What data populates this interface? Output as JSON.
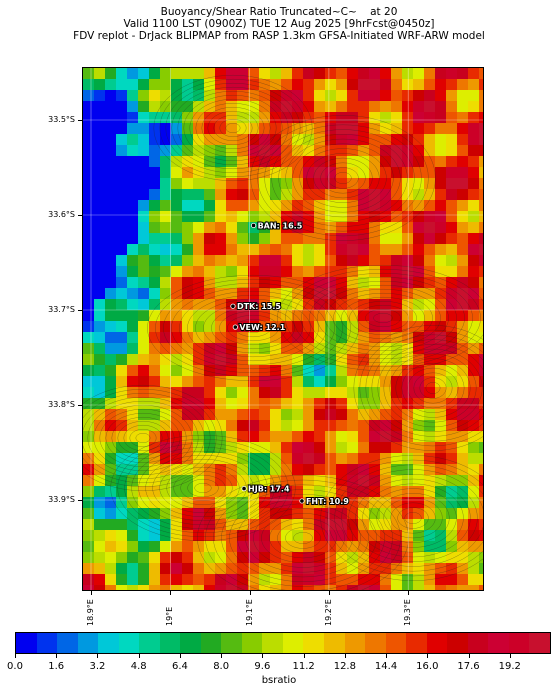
{
  "titles": {
    "line1": "Buoyancy/Shear Ratio Truncated~C~    at 20",
    "line2": "Valid 1100 LST (0900Z) TUE 12 Aug 2025 [9hrFcst@0450z]",
    "line3": "FDV replot - DrJack BLIPMAP from RASP 1.3km GFSA-Initiated WRF-ARW model"
  },
  "map": {
    "lat_labels": [
      "33.5°S",
      "33.6°S",
      "33.7°S",
      "33.8°S",
      "33.9°S"
    ],
    "lon_labels": [
      "18.9°E",
      "19°E",
      "19.1°E",
      "19.2°E",
      "19.3°E"
    ],
    "stations": [
      {
        "label": "BAN: 16.5",
        "lon": 19.105,
        "lat": -33.611
      },
      {
        "label": "DTK: 15.5",
        "lon": 19.079,
        "lat": -33.696
      },
      {
        "label": "VEW: 12.1",
        "lon": 19.082,
        "lat": -33.718
      },
      {
        "label": "HJB: 17.4",
        "lon": 19.093,
        "lat": -33.888
      },
      {
        "label": "FHT: 10.9",
        "lon": 19.166,
        "lat": -33.901
      }
    ]
  },
  "colorbar": {
    "title": "bsratio",
    "tick_labels": [
      "0.0",
      "1.6",
      "3.2",
      "4.8",
      "6.4",
      "8.0",
      "9.6",
      "11.2",
      "12.8",
      "14.4",
      "16.0",
      "17.6",
      "19.2"
    ],
    "min": 0,
    "max": 20.8,
    "colors": [
      "#0000f0",
      "#0033ee",
      "#0066e6",
      "#0099e0",
      "#00c8d8",
      "#00d8c0",
      "#00cc90",
      "#00bb66",
      "#00aa44",
      "#22aa22",
      "#55bb11",
      "#88cc00",
      "#bbdd00",
      "#ddee00",
      "#eedd00",
      "#eebb00",
      "#ee9900",
      "#ee7700",
      "#ee5500",
      "#e82a00",
      "#e00000",
      "#cc0000",
      "#c8001e",
      "#cc0033",
      "#cc0028",
      "#c8102e"
    ]
  }
}
